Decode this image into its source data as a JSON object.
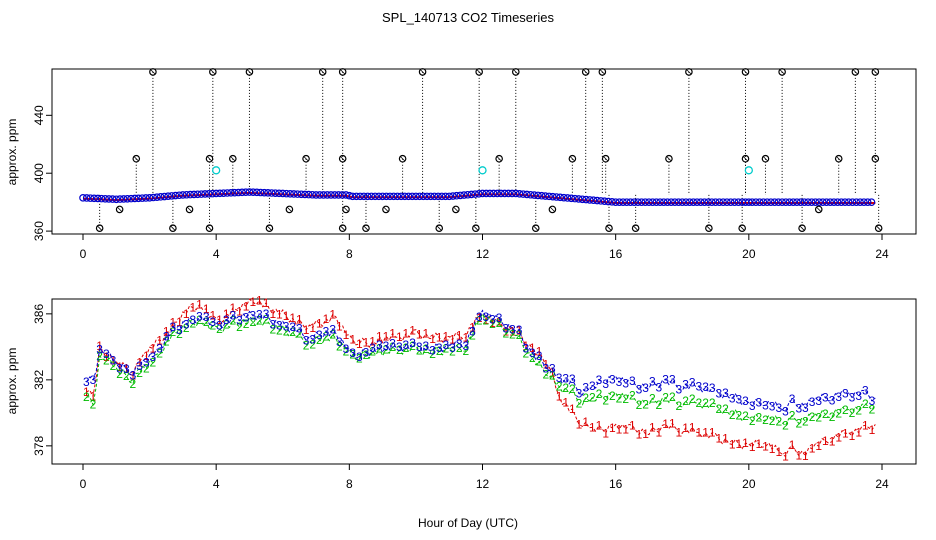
{
  "title": "SPL_140713  CO2 Timeseries",
  "xlabel": "Hour of Day (UTC)",
  "colors": {
    "series1": "#dd0000",
    "series2": "#00bb00",
    "series3": "#0000cc",
    "outlier": "#000000",
    "cyan": "#00cccc",
    "axis": "#000000"
  },
  "chart_data": [
    {
      "type": "scatter",
      "ylabel": "approx. ppm",
      "xlim": [
        0,
        24
      ],
      "ylim": [
        358,
        472
      ],
      "x_ticks": [
        0,
        4,
        8,
        12,
        16,
        20,
        24
      ],
      "y_ticks": [
        360,
        400,
        440
      ],
      "x_tick_labels": [
        "0",
        "4",
        "8",
        "12",
        "16",
        "20",
        "24"
      ],
      "y_tick_labels": [
        "360",
        "400",
        "440"
      ],
      "series": [
        {
          "x": [
            0.0,
            1.0,
            2.0,
            3.0,
            4.0,
            5.0,
            6.0,
            7.0,
            7.9,
            8.1,
            9.0,
            10.0,
            11.0,
            12.0,
            13.0,
            14.0,
            15.0,
            16.0,
            17.0,
            18.0,
            19.0,
            19.8,
            20.1,
            21.0,
            22.0,
            23.0,
            23.8
          ],
          "y": [
            383,
            382,
            383,
            385,
            386,
            387,
            386,
            385,
            385,
            384,
            384,
            384,
            384,
            386,
            386,
            384,
            382,
            380,
            380,
            380,
            380,
            380,
            380,
            380,
            380,
            380,
            380
          ]
        }
      ],
      "outliers_high": {
        "x": [
          2.1,
          3.9,
          5.0,
          7.2,
          7.8,
          10.2,
          11.9,
          13.0,
          15.1,
          15.6,
          18.2,
          19.9,
          21.0,
          23.2,
          23.8
        ],
        "y": [
          470,
          470,
          470,
          470,
          470,
          470,
          470,
          470,
          470,
          470,
          470,
          470,
          470,
          470,
          470
        ]
      },
      "outliers_mid": {
        "x": [
          1.6,
          3.8,
          4.5,
          6.7,
          7.8,
          9.6,
          12.5,
          14.7,
          15.7,
          17.6,
          19.9,
          20.5,
          22.7,
          23.8
        ],
        "y": [
          410,
          410,
          410,
          410,
          410,
          410,
          410,
          410,
          410,
          410,
          410,
          410,
          410,
          410
        ]
      },
      "outliers_low": {
        "x": [
          0.5,
          2.7,
          3.8,
          5.6,
          7.8,
          8.5,
          10.7,
          11.8,
          13.6,
          15.8,
          16.6,
          18.8,
          19.8,
          21.6,
          23.9
        ],
        "y": [
          362,
          362,
          362,
          362,
          362,
          362,
          362,
          362,
          362,
          362,
          362,
          362,
          362,
          362,
          362
        ]
      },
      "outliers_low2": {
        "x": [
          1.1,
          3.2,
          6.2,
          7.9,
          9.1,
          11.2,
          14.1,
          22.1
        ],
        "y": [
          375,
          375,
          375,
          375,
          375,
          375,
          375,
          375
        ]
      },
      "cyan_points": {
        "x": [
          4.0,
          12.0,
          20.0
        ],
        "y": [
          402,
          402,
          402
        ]
      }
    },
    {
      "type": "line",
      "ylabel": "approx. ppm",
      "xlim": [
        0,
        24
      ],
      "ylim": [
        376.9,
        386.9
      ],
      "x_ticks": [
        0,
        4,
        8,
        12,
        16,
        20,
        24
      ],
      "y_ticks": [
        378,
        382,
        386
      ],
      "x_tick_labels": [
        "0",
        "4",
        "8",
        "12",
        "16",
        "20",
        "24"
      ],
      "y_tick_labels": [
        "378",
        "382",
        "386"
      ],
      "series": [
        {
          "name": "1",
          "x": [
            0.1,
            0.3,
            0.5,
            0.7,
            1.0,
            1.5,
            1.8,
            2.2,
            2.6,
            3.0,
            3.4,
            3.7,
            4.0,
            4.4,
            4.8,
            5.2,
            5.6,
            6.0,
            6.4,
            6.8,
            7.2,
            7.6,
            8.0,
            8.3,
            8.7,
            9.0,
            9.5,
            10.0,
            10.5,
            11.0,
            11.5,
            12.0,
            12.5,
            13.0,
            13.5,
            14.0,
            14.3,
            14.7,
            15.0,
            15.3,
            15.7,
            16.0,
            16.5,
            17.0,
            17.5,
            18.0,
            18.5,
            19.0,
            19.5,
            20.0,
            20.5,
            21.0,
            21.3,
            21.7,
            22.0,
            22.5,
            23.0,
            23.5,
            23.8
          ],
          "y": [
            381.5,
            381.0,
            383.8,
            383.5,
            383.0,
            382.5,
            383.5,
            384.2,
            385.0,
            386.0,
            386.5,
            386.3,
            385.5,
            386.0,
            386.5,
            386.8,
            386.3,
            386.0,
            385.5,
            385.2,
            385.5,
            385.8,
            384.5,
            384.3,
            384.2,
            384.5,
            384.6,
            384.8,
            384.6,
            384.5,
            384.8,
            386.0,
            385.3,
            385.0,
            383.8,
            383.0,
            381.0,
            380.0,
            379.3,
            379.0,
            379.0,
            379.3,
            379.0,
            378.8,
            379.2,
            379.0,
            378.8,
            378.5,
            378.2,
            378.0,
            378.2,
            377.5,
            377.8,
            377.5,
            378.0,
            378.5,
            378.8,
            379.0,
            379.3
          ]
        },
        {
          "name": "2",
          "x": [
            0.1,
            0.3,
            0.5,
            0.7,
            1.0,
            1.5,
            1.8,
            2.2,
            2.6,
            3.0,
            3.4,
            3.7,
            4.0,
            4.4,
            4.8,
            5.2,
            5.6,
            6.0,
            6.4,
            6.8,
            7.2,
            7.6,
            8.0,
            8.3,
            8.7,
            9.0,
            9.5,
            10.0,
            10.5,
            11.0,
            11.5,
            12.0,
            12.5,
            13.0,
            13.5,
            14.0,
            14.3,
            14.7,
            15.0,
            15.3,
            15.7,
            16.0,
            16.5,
            17.0,
            17.5,
            18.0,
            18.5,
            19.0,
            19.5,
            20.0,
            20.5,
            21.0,
            21.3,
            21.7,
            22.0,
            22.5,
            23.0,
            23.5,
            23.8
          ],
          "y": [
            381.2,
            380.5,
            383.2,
            383.3,
            382.6,
            382.0,
            382.8,
            383.3,
            384.5,
            385.2,
            385.5,
            385.5,
            385.0,
            385.3,
            385.5,
            385.5,
            385.4,
            385.0,
            384.7,
            384.2,
            384.5,
            384.5,
            383.6,
            383.4,
            383.6,
            383.7,
            383.8,
            383.8,
            383.7,
            383.8,
            384.0,
            386.0,
            385.2,
            384.8,
            383.2,
            382.4,
            381.6,
            381.2,
            380.6,
            380.8,
            381.0,
            381.2,
            380.8,
            380.6,
            380.8,
            380.6,
            380.6,
            380.3,
            380.0,
            379.6,
            379.8,
            379.4,
            379.6,
            379.6,
            379.8,
            380.0,
            380.2,
            380.3,
            380.5
          ]
        },
        {
          "name": "3",
          "x": [
            0.1,
            0.3,
            0.5,
            0.7,
            1.0,
            1.5,
            1.8,
            2.2,
            2.6,
            3.0,
            3.4,
            3.7,
            4.0,
            4.4,
            4.8,
            5.2,
            5.6,
            6.0,
            6.4,
            6.8,
            7.2,
            7.6,
            8.0,
            8.3,
            8.7,
            9.0,
            9.5,
            10.0,
            10.5,
            11.0,
            11.5,
            12.0,
            12.5,
            13.0,
            13.5,
            14.0,
            14.3,
            14.7,
            15.0,
            15.3,
            15.7,
            16.0,
            16.5,
            17.0,
            17.5,
            18.0,
            18.5,
            19.0,
            19.5,
            20.0,
            20.5,
            21.0,
            21.3,
            21.7,
            22.0,
            22.5,
            23.0,
            23.5,
            23.8
          ],
          "y": [
            382.1,
            382.0,
            383.6,
            383.7,
            382.9,
            382.5,
            383.2,
            383.6,
            384.8,
            385.4,
            385.7,
            385.8,
            385.2,
            385.6,
            385.9,
            385.9,
            385.7,
            385.3,
            385.0,
            384.5,
            384.8,
            384.8,
            383.7,
            383.5,
            383.8,
            383.9,
            384.0,
            384.0,
            383.9,
            384.0,
            384.3,
            386.2,
            385.5,
            385.1,
            383.5,
            382.8,
            382.1,
            381.8,
            381.2,
            381.5,
            382.0,
            382.2,
            381.7,
            381.6,
            381.9,
            381.6,
            381.6,
            381.2,
            381.0,
            380.5,
            380.7,
            380.2,
            380.6,
            380.4,
            380.8,
            381.0,
            381.2,
            381.1,
            380.9
          ]
        }
      ]
    }
  ]
}
